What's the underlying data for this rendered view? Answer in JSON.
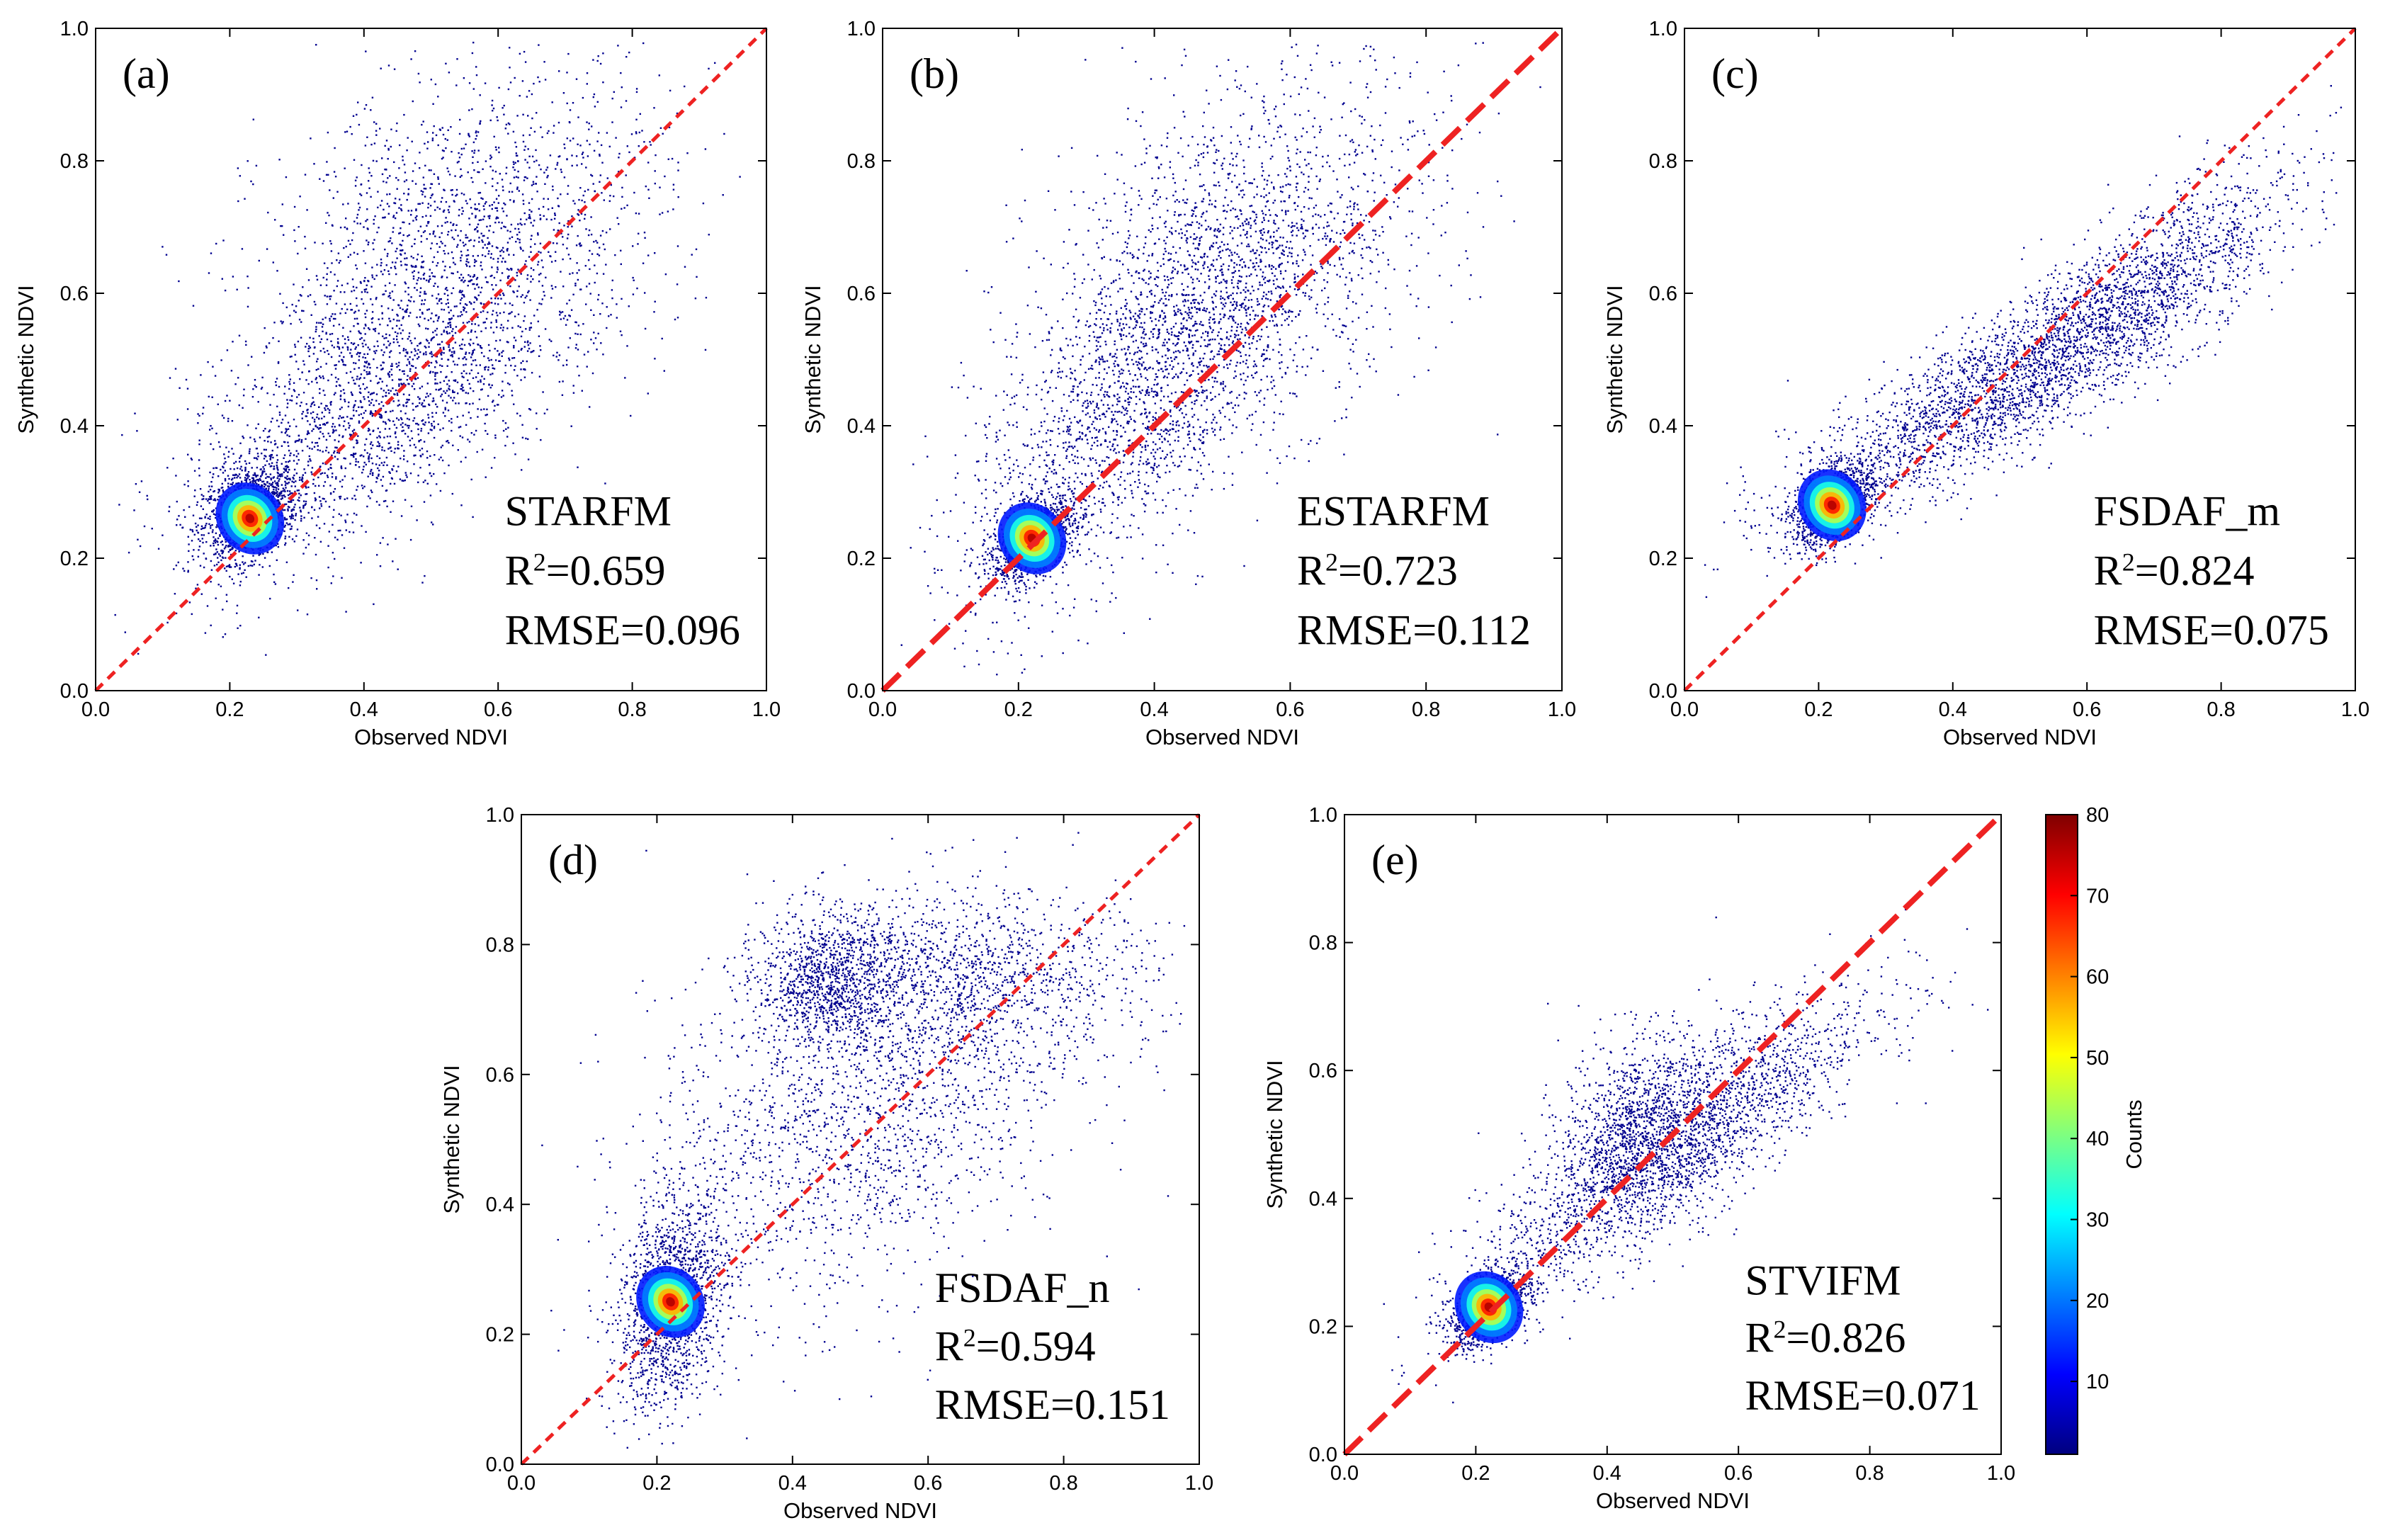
{
  "chart_data": {
    "type": "scatter",
    "subtype": "density-scatter",
    "panels": [
      {
        "id": "a",
        "label": "(a)",
        "method": "STARFM",
        "r2": "0.659",
        "rmse": "0.096",
        "xlabel": "Observed NDVI",
        "ylabel": "Synthetic NDVI",
        "xlim": [
          0,
          1
        ],
        "ylim": [
          0,
          1
        ],
        "xticks": [
          "0.0",
          "0.2",
          "0.4",
          "0.6",
          "0.8",
          "1.0"
        ],
        "yticks": [
          "0.0",
          "0.2",
          "0.4",
          "0.6",
          "0.8",
          "1.0"
        ],
        "line_style": "thin-dash",
        "peak": [
          0.23,
          0.26
        ],
        "clusters": [
          {
            "cx": 0.23,
            "cy": 0.27,
            "sx": 0.035,
            "sy": 0.035,
            "rho": 0.3,
            "n": 1400
          },
          {
            "cx": 0.4,
            "cy": 0.42,
            "sx": 0.14,
            "sy": 0.12,
            "rho": 0.6,
            "n": 1900
          },
          {
            "cx": 0.55,
            "cy": 0.68,
            "sx": 0.15,
            "sy": 0.13,
            "rho": 0.3,
            "n": 1700
          }
        ]
      },
      {
        "id": "b",
        "label": "(b)",
        "method": "ESTARFM",
        "r2": "0.723",
        "rmse": "0.112",
        "xlabel": "Observed NDVI",
        "ylabel": "Synthetic NDVI",
        "xlim": [
          0,
          1
        ],
        "ylim": [
          0,
          1
        ],
        "xticks": [
          "0.0",
          "0.2",
          "0.4",
          "0.6",
          "0.8",
          "1.0"
        ],
        "yticks": [
          "0.0",
          "0.2",
          "0.4",
          "0.6",
          "0.8",
          "1.0"
        ],
        "line_style": "thick-dash",
        "peak": [
          0.22,
          0.23
        ],
        "clusters": [
          {
            "cx": 0.22,
            "cy": 0.23,
            "sx": 0.03,
            "sy": 0.03,
            "rho": 0.5,
            "n": 1200
          },
          {
            "cx": 0.38,
            "cy": 0.45,
            "sx": 0.13,
            "sy": 0.16,
            "rho": 0.7,
            "n": 2000
          },
          {
            "cx": 0.52,
            "cy": 0.65,
            "sx": 0.15,
            "sy": 0.15,
            "rho": 0.4,
            "n": 1600
          }
        ]
      },
      {
        "id": "c",
        "label": "(c)",
        "method": "FSDAF_m",
        "r2": "0.824",
        "rmse": "0.075",
        "xlabel": "Observed NDVI",
        "ylabel": "Synthetic NDVI",
        "xlim": [
          0,
          1
        ],
        "ylim": [
          0,
          1
        ],
        "xticks": [
          "0.0",
          "0.2",
          "0.4",
          "0.6",
          "0.8",
          "1.0"
        ],
        "yticks": [
          "0.0",
          "0.2",
          "0.4",
          "0.6",
          "0.8",
          "1.0"
        ],
        "line_style": "thin-dash",
        "peak": [
          0.22,
          0.28
        ],
        "clusters": [
          {
            "cx": 0.22,
            "cy": 0.28,
            "sx": 0.03,
            "sy": 0.03,
            "rho": 0.4,
            "n": 1200
          },
          {
            "cx": 0.45,
            "cy": 0.45,
            "sx": 0.15,
            "sy": 0.1,
            "rho": 0.85,
            "n": 2200
          },
          {
            "cx": 0.68,
            "cy": 0.6,
            "sx": 0.12,
            "sy": 0.1,
            "rho": 0.8,
            "n": 1400
          }
        ]
      },
      {
        "id": "d",
        "label": "(d)",
        "method": "FSDAF_n",
        "r2": "0.594",
        "rmse": "0.151",
        "xlabel": "Observed NDVI",
        "ylabel": "Synthetic NDVI",
        "xlim": [
          0,
          1
        ],
        "ylim": [
          0,
          1
        ],
        "xticks": [
          "0.0",
          "0.2",
          "0.4",
          "0.6",
          "0.8",
          "1.0"
        ],
        "yticks": [
          "0.0",
          "0.2",
          "0.4",
          "0.6",
          "0.8",
          "1.0"
        ],
        "line_style": "thin-dash",
        "peak": [
          0.22,
          0.25
        ],
        "clusters": [
          {
            "cx": 0.22,
            "cy": 0.25,
            "sx": 0.04,
            "sy": 0.08,
            "rho": 0.3,
            "n": 1500
          },
          {
            "cx": 0.45,
            "cy": 0.75,
            "sx": 0.05,
            "sy": 0.05,
            "rho": 0.0,
            "n": 900
          },
          {
            "cx": 0.5,
            "cy": 0.55,
            "sx": 0.16,
            "sy": 0.16,
            "rho": 0.4,
            "n": 2000
          },
          {
            "cx": 0.65,
            "cy": 0.75,
            "sx": 0.14,
            "sy": 0.06,
            "rho": 0.1,
            "n": 1100
          }
        ]
      },
      {
        "id": "e",
        "label": "(e)",
        "method": "STVIFM",
        "r2": "0.826",
        "rmse": "0.071",
        "xlabel": "Observed NDVI",
        "ylabel": "Synthetic NDVI",
        "xlim": [
          0,
          1
        ],
        "ylim": [
          0,
          1
        ],
        "xticks": [
          "0.0",
          "0.2",
          "0.4",
          "0.6",
          "0.8",
          "1.0"
        ],
        "yticks": [
          "0.0",
          "0.2",
          "0.4",
          "0.6",
          "0.8",
          "1.0"
        ],
        "line_style": "thick-dash",
        "peak": [
          0.22,
          0.23
        ],
        "clusters": [
          {
            "cx": 0.22,
            "cy": 0.23,
            "sx": 0.03,
            "sy": 0.03,
            "rho": 0.5,
            "n": 1200
          },
          {
            "cx": 0.45,
            "cy": 0.52,
            "sx": 0.06,
            "sy": 0.07,
            "rho": 0.2,
            "n": 1000
          },
          {
            "cx": 0.5,
            "cy": 0.48,
            "sx": 0.15,
            "sy": 0.12,
            "rho": 0.85,
            "n": 2300
          }
        ]
      }
    ],
    "colorbar": {
      "label": "Counts",
      "range": [
        1,
        80
      ],
      "ticks": [
        "10",
        "20",
        "30",
        "40",
        "50",
        "60",
        "70",
        "80"
      ],
      "colormap": "jet"
    },
    "line_color": "#ee2222",
    "point_color": "#00008f"
  }
}
